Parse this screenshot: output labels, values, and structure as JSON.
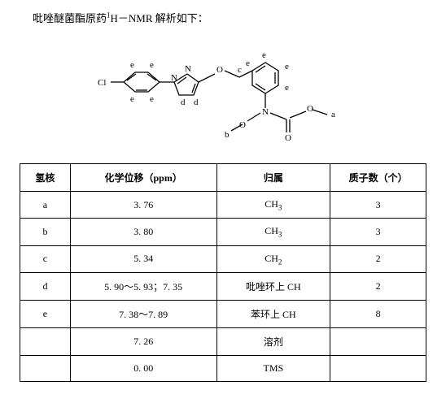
{
  "title_prefix": "吡唑醚菌酯原药",
  "title_nmr": "H－NMR",
  "title_suffix": " 解析如下：",
  "structure": {
    "cl_label": "Cl",
    "n_label": "N",
    "o_label": "O",
    "double_o": "O",
    "labels": {
      "a": "a",
      "b": "b",
      "c": "c",
      "d": "d",
      "e": "e"
    }
  },
  "table": {
    "columns": [
      "氢核",
      "化学位移（ppm）",
      "归属",
      "质子数（个）"
    ],
    "col_widths": [
      "62px",
      "180px",
      "140px",
      "118px"
    ],
    "rows": [
      {
        "nucleus": "a",
        "shift": "3. 76",
        "assign": "CH",
        "assign_sub": "3",
        "protons": "3"
      },
      {
        "nucleus": "b",
        "shift": "3. 80",
        "assign": "CH",
        "assign_sub": "3",
        "protons": "3"
      },
      {
        "nucleus": "c",
        "shift": "5. 34",
        "assign": "CH",
        "assign_sub": "2",
        "protons": "2"
      },
      {
        "nucleus": "d",
        "shift": "5. 90～5. 93；7. 35",
        "assign_full": "吡唑环上 CH",
        "protons": "2"
      },
      {
        "nucleus": "e",
        "shift": "7. 38～7. 89",
        "assign_full": "苯环上 CH",
        "protons": "8"
      },
      {
        "nucleus": "",
        "shift": "7. 26",
        "assign_full": "溶剂",
        "protons": ""
      },
      {
        "nucleus": "",
        "shift": "0. 00",
        "assign_full": "TMS",
        "protons": ""
      }
    ]
  }
}
